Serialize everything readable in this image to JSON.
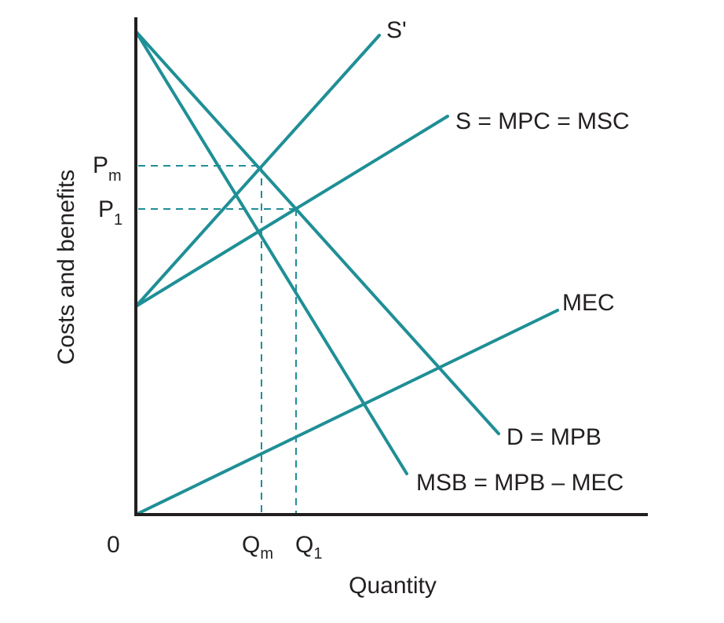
{
  "diagram": {
    "axes": {
      "y_label": "Costs and benefits",
      "x_label": "Quantity",
      "origin": "0"
    },
    "price_labels": {
      "pm_main": "P",
      "pm_sub": "m",
      "p1_main": "P",
      "p1_sub": "1"
    },
    "quantity_labels": {
      "qm_main": "Q",
      "qm_sub": "m",
      "q1_main": "Q",
      "q1_sub": "1"
    },
    "curves": {
      "s_prime": "S'",
      "s": "S = MPC = MSC",
      "mec": "MEC",
      "d": "D = MPB",
      "msb": "MSB = MPB – MEC"
    },
    "colors": {
      "curve": "#1f8f96",
      "axis": "#231f20"
    }
  }
}
